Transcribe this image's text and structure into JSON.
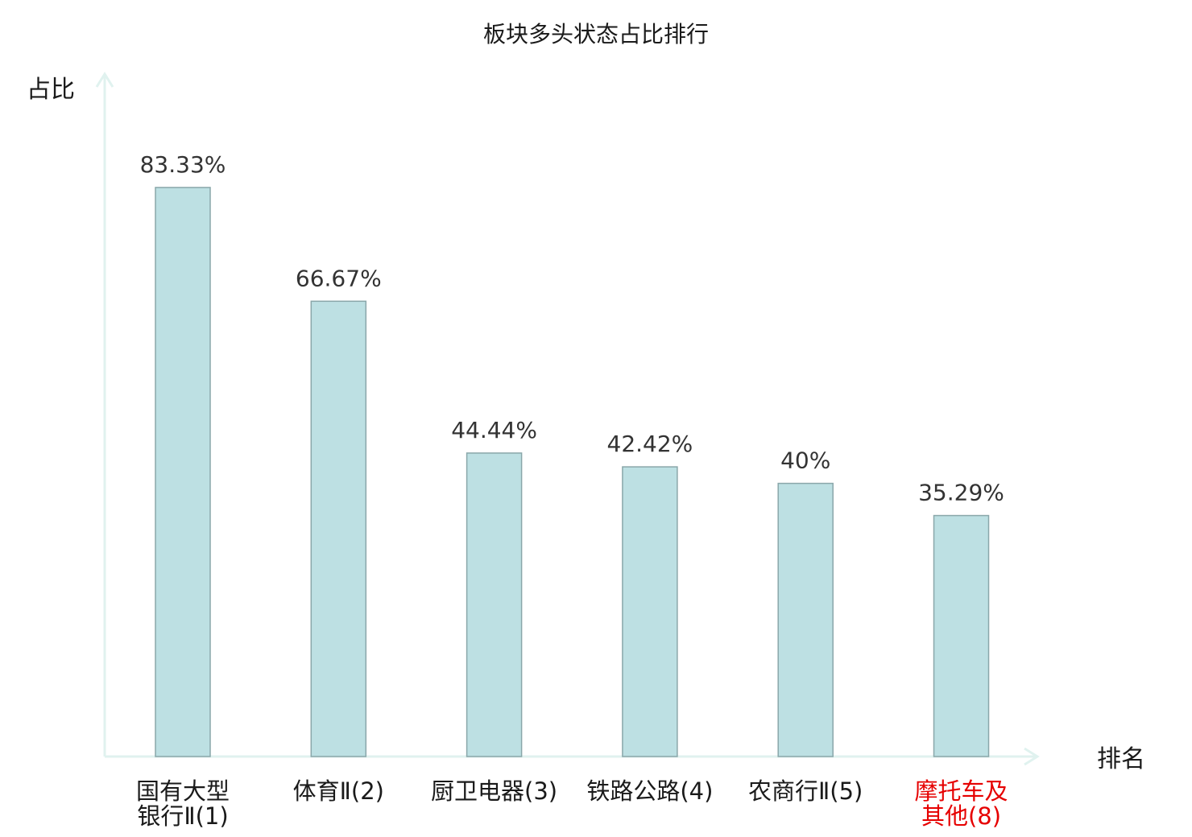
{
  "chart_data": {
    "type": "bar",
    "title": "板块多头状态占比排行",
    "xlabel": "排名",
    "ylabel": "占比",
    "categories": [
      [
        "国有大型",
        "银行Ⅱ(1)"
      ],
      [
        "体育Ⅱ(2)"
      ],
      [
        "厨卫电器(3)"
      ],
      [
        "铁路公路(4)"
      ],
      [
        "农商行Ⅱ(5)"
      ],
      [
        "摩托车及",
        "其他(8)"
      ]
    ],
    "highlight_category_index": 5,
    "values": [
      83.33,
      66.67,
      44.44,
      42.42,
      40,
      35.29
    ],
    "value_labels": [
      "83.33%",
      "66.67%",
      "44.44%",
      "42.42%",
      "40%",
      "35.29%"
    ],
    "ylim": [
      0,
      100
    ],
    "grid": false,
    "legend": "none"
  },
  "colors": {
    "bar_fill": "#bde0e3",
    "bar_stroke": "#8aa7aa",
    "axis": "#e0f2ef",
    "text": "#1a1a1a",
    "value_text": "#333333",
    "highlight_text": "#e60000"
  }
}
